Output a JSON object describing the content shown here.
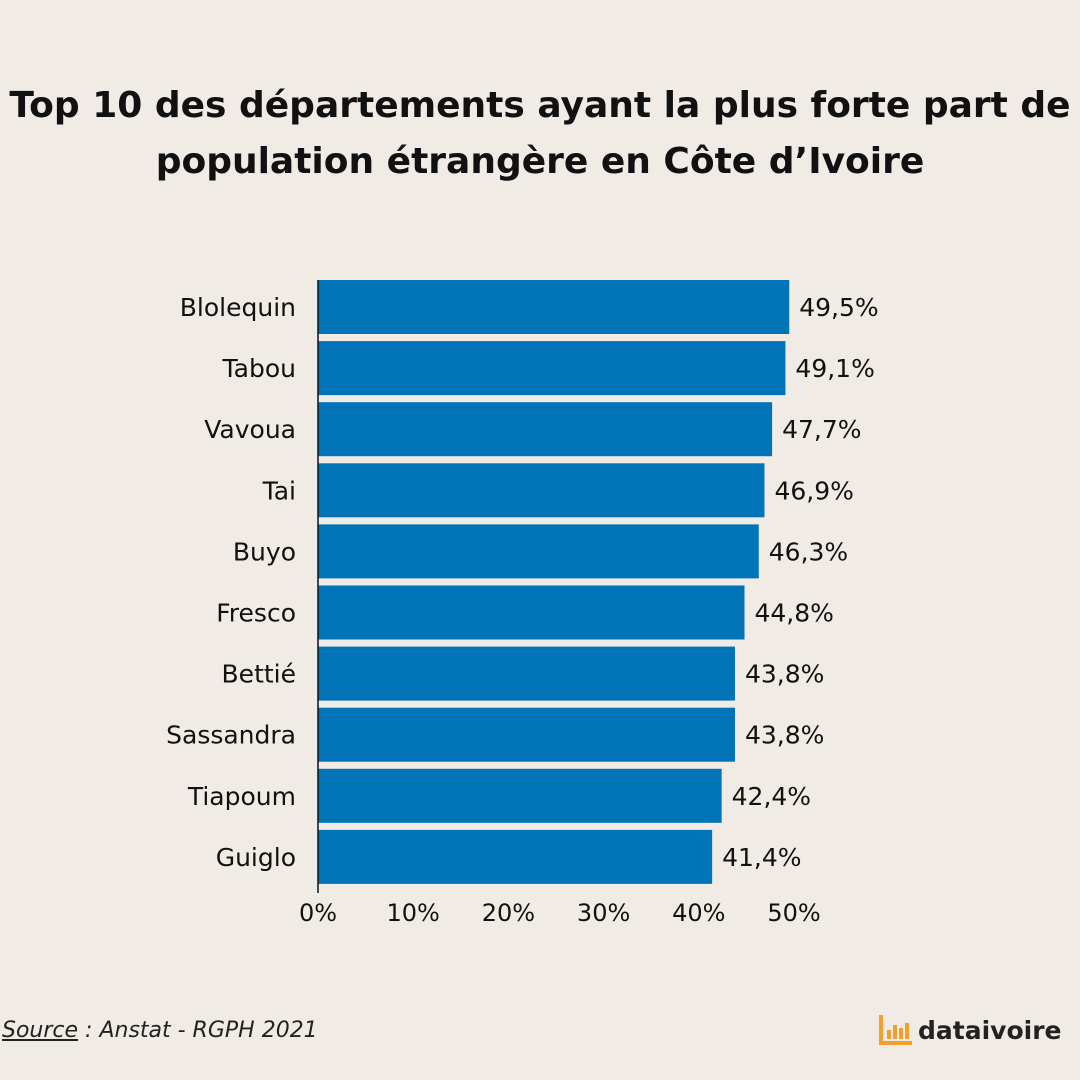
{
  "title_lines": [
    "Top 10 des départements ayant la plus forte part de",
    "population étrangère en Côte d’Ivoire"
  ],
  "chart_data": {
    "type": "bar",
    "orientation": "horizontal",
    "title": "Top 10 des départements ayant la plus forte part de population étrangère en Côte d’Ivoire",
    "categories": [
      "Blolequin",
      "Tabou",
      "Vavoua",
      "Tai",
      "Buyo",
      "Fresco",
      "Bettié",
      "Sassandra",
      "Tiapoum",
      "Guiglo"
    ],
    "values": [
      49.5,
      49.1,
      47.7,
      46.9,
      46.3,
      44.8,
      43.8,
      43.8,
      42.4,
      41.4
    ],
    "value_labels": [
      "49,5%",
      "49,1%",
      "47,7%",
      "46,9%",
      "46,3%",
      "44,8%",
      "43,8%",
      "43,8%",
      "42,4%",
      "41,4%"
    ],
    "xlim": [
      0,
      50
    ],
    "x_ticks": [
      0,
      10,
      20,
      30,
      40,
      50
    ],
    "x_tick_labels": [
      "0%",
      "10%",
      "20%",
      "30%",
      "40%",
      "50%"
    ],
    "grid": false,
    "legend": "none",
    "bar_color": "#0074b7"
  },
  "source": {
    "label": "Source",
    "text": " : Anstat - RGPH 2021"
  },
  "brand": {
    "name": "dataivoire",
    "icon": "bar-chart-logo-icon",
    "color": "#f0a030"
  }
}
